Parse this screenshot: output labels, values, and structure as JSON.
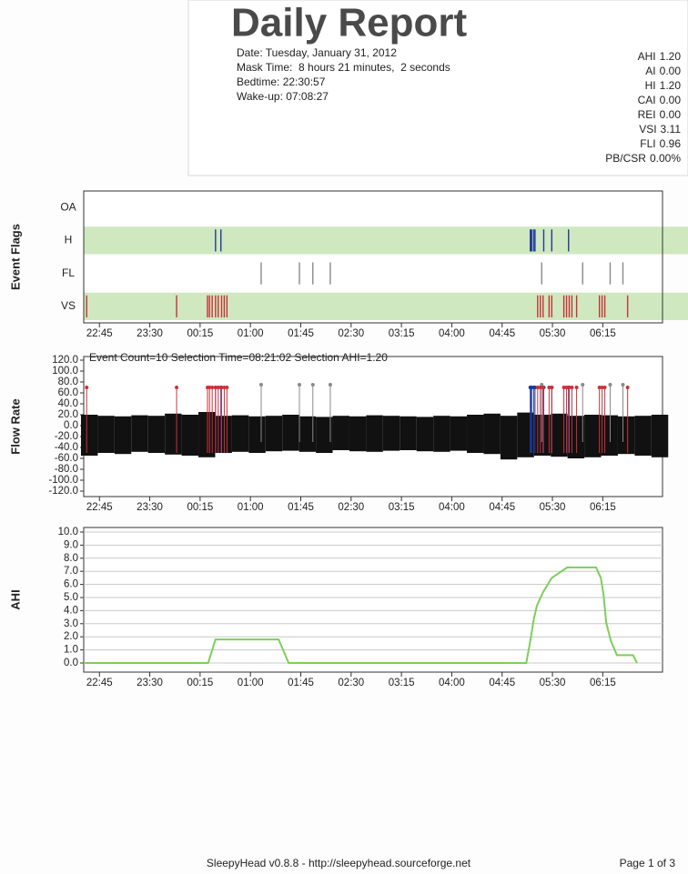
{
  "header": {
    "title": "Daily Report",
    "lines": [
      "Date: Tuesday, January 31, 2012",
      "Mask Time:  8 hours 21 minutes,  2 seconds",
      "Bedtime: 22:30:57",
      "Wake-up: 07:08:27"
    ]
  },
  "stats": [
    {
      "label": "AHI",
      "value": "1.20"
    },
    {
      "label": "AI",
      "value": "0.00"
    },
    {
      "label": "HI",
      "value": "1.20"
    },
    {
      "label": "CAI",
      "value": "0.00"
    },
    {
      "label": "REI",
      "value": "0.00"
    },
    {
      "label": "VSI",
      "value": "3.11"
    },
    {
      "label": "FLI",
      "value": "0.96"
    },
    {
      "label": "PB/CSR",
      "value": "0.00%"
    }
  ],
  "time_axis": {
    "xlim": [
      22.516,
      31.14
    ],
    "xticks": [
      {
        "value": 22.75,
        "label": "22:45"
      },
      {
        "value": 23.5,
        "label": "23:30"
      },
      {
        "value": 24.25,
        "label": "00:15"
      },
      {
        "value": 25,
        "label": "01:00"
      },
      {
        "value": 25.75,
        "label": "01:45"
      },
      {
        "value": 26.5,
        "label": "02:30"
      },
      {
        "value": 27.25,
        "label": "03:15"
      },
      {
        "value": 28,
        "label": "04:00"
      },
      {
        "value": 28.75,
        "label": "04:45"
      },
      {
        "value": 29.5,
        "label": "05:30"
      },
      {
        "value": 30.25,
        "label": "06:15"
      }
    ]
  },
  "charts": [
    {
      "type": "event-flags",
      "y_label": "Event Flags",
      "rows": [
        {
          "label": "OA",
          "color": "#2a3f9a",
          "band": false,
          "events": []
        },
        {
          "label": "H",
          "color": "#1f3a98",
          "band": true,
          "events": [
            24.48,
            24.56,
            29.17,
            29.18,
            29.19,
            29.22,
            29.24,
            29.37,
            29.49,
            29.74
          ]
        },
        {
          "label": "FL",
          "color": "#8a8a8a",
          "band": false,
          "events": [
            25.16,
            25.73,
            25.93,
            26.19,
            29.34,
            29.95,
            30.36,
            30.55
          ]
        },
        {
          "label": "VS",
          "color": "#c8323a",
          "band": true,
          "events": [
            22.56,
            23.9,
            24.36,
            24.39,
            24.43,
            24.48,
            24.52,
            24.57,
            24.61,
            24.65,
            29.28,
            29.32,
            29.36,
            29.45,
            29.49,
            29.67,
            29.71,
            29.75,
            29.79,
            29.86,
            30.2,
            30.24,
            30.28,
            30.62
          ]
        }
      ]
    },
    {
      "type": "flow",
      "y_label": "Flow Rate",
      "caption": "Event Count=10 Selection Time=08:21:02 Selection AHI=1.20",
      "color": "#111111",
      "ylim": [
        -120,
        120
      ],
      "yticks": [
        {
          "value": 120,
          "label": "120.0"
        },
        {
          "value": 100,
          "label": "100.0"
        },
        {
          "value": 80,
          "label": "80.0"
        },
        {
          "value": 60,
          "label": "60.0"
        },
        {
          "value": 40,
          "label": "40.0"
        },
        {
          "value": 20,
          "label": "20.0"
        },
        {
          "value": 0,
          "label": "0.0"
        },
        {
          "value": -20,
          "label": "-20.0"
        },
        {
          "value": -40,
          "label": "-40.0"
        },
        {
          "value": -60,
          "label": "-60.0"
        },
        {
          "value": -80,
          "label": "-80.0"
        },
        {
          "value": -100,
          "label": "-100.0"
        },
        {
          "value": -120,
          "label": "-120.0"
        }
      ],
      "x": [
        22.6,
        22.85,
        23.1,
        23.35,
        23.6,
        23.85,
        24.1,
        24.35,
        24.6,
        24.85,
        25.1,
        25.35,
        25.6,
        25.85,
        26.1,
        26.35,
        26.6,
        26.85,
        27.1,
        27.35,
        27.6,
        27.85,
        28.1,
        28.35,
        28.6,
        28.85,
        29.1,
        29.35,
        29.6,
        29.85,
        30.1,
        30.35,
        30.6,
        30.85,
        31.1
      ],
      "max": [
        20,
        18,
        17,
        19,
        18,
        22,
        20,
        25,
        18,
        19,
        17,
        18,
        20,
        17,
        16,
        18,
        17,
        19,
        18,
        17,
        16,
        18,
        17,
        20,
        22,
        18,
        24,
        20,
        22,
        18,
        20,
        19,
        17,
        18,
        20
      ],
      "min": [
        -55,
        -50,
        -52,
        -48,
        -50,
        -53,
        -55,
        -58,
        -50,
        -48,
        -50,
        -47,
        -46,
        -48,
        -50,
        -45,
        -47,
        -48,
        -46,
        -45,
        -47,
        -48,
        -46,
        -50,
        -52,
        -62,
        -58,
        -55,
        -57,
        -60,
        -58,
        -55,
        -52,
        -55,
        -58
      ]
    },
    {
      "type": "line",
      "y_label": "AHI",
      "color": "#7ccf5a",
      "grid": true,
      "ylim": [
        0,
        10
      ],
      "yticks": [
        {
          "value": 10,
          "label": "10.0"
        },
        {
          "value": 9,
          "label": "9.0"
        },
        {
          "value": 8,
          "label": "8.0"
        },
        {
          "value": 7,
          "label": "7.0"
        },
        {
          "value": 6,
          "label": "6.0"
        },
        {
          "value": 5,
          "label": "5.0"
        },
        {
          "value": 4,
          "label": "4.0"
        },
        {
          "value": 3,
          "label": "3.0"
        },
        {
          "value": 2,
          "label": "2.0"
        },
        {
          "value": 1,
          "label": "1.0"
        },
        {
          "value": 0,
          "label": "0.0"
        }
      ],
      "x": [
        22.53,
        24.37,
        24.48,
        25.42,
        25.57,
        29.11,
        29.18,
        29.22,
        29.27,
        29.36,
        29.49,
        29.72,
        30.15,
        30.22,
        30.26,
        30.3,
        30.37,
        30.46,
        30.7,
        30.76
      ],
      "values": [
        0,
        0,
        1.8,
        1.8,
        0,
        0,
        2,
        3.3,
        4.4,
        5.4,
        6.5,
        7.3,
        7.3,
        6.5,
        5.3,
        3.1,
        1.7,
        0.6,
        0.6,
        0
      ]
    }
  ],
  "footer": {
    "center": "SleepyHead v0.8.8 - http://sleepyhead.sourceforge.net",
    "page": "Page 1 of 3"
  }
}
